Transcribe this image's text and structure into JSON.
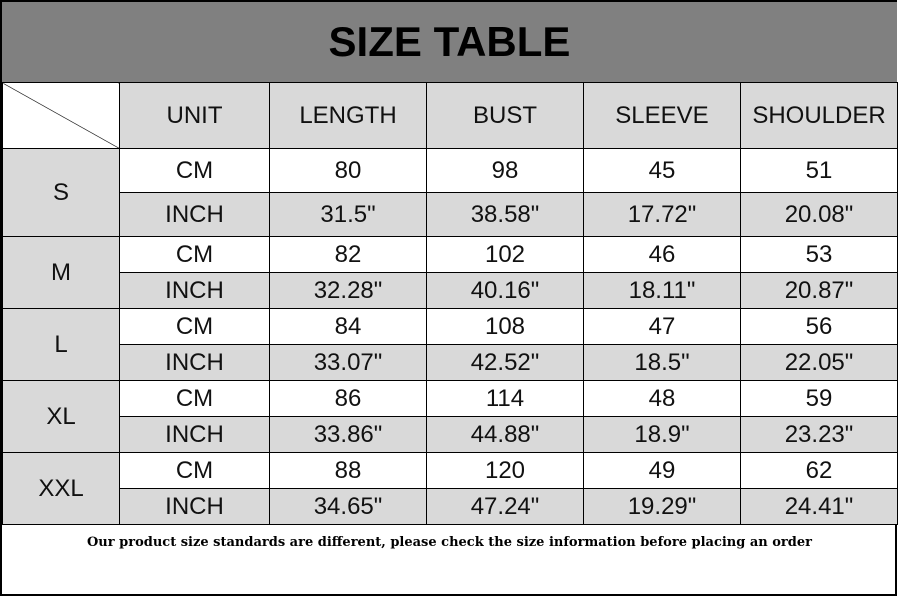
{
  "title": "SIZE TABLE",
  "columns": [
    "UNIT",
    "LENGTH",
    "BUST",
    "SLEEVE",
    "SHOULDER"
  ],
  "sizes": [
    {
      "size": "S",
      "rows": [
        [
          "CM",
          "80",
          "98",
          "45",
          "51"
        ],
        [
          "INCH",
          "31.5\"",
          "38.58\"",
          "17.72\"",
          "20.08\""
        ]
      ]
    },
    {
      "size": "M",
      "rows": [
        [
          "CM",
          "82",
          "102",
          "46",
          "53"
        ],
        [
          "INCH",
          "32.28\"",
          "40.16\"",
          "18.11\"",
          "20.87\""
        ]
      ]
    },
    {
      "size": "L",
      "rows": [
        [
          "CM",
          "84",
          "108",
          "47",
          "56"
        ],
        [
          "INCH",
          "33.07\"",
          "42.52\"",
          "18.5\"",
          "22.05\""
        ]
      ]
    },
    {
      "size": "XL",
      "rows": [
        [
          "CM",
          "86",
          "114",
          "48",
          "59"
        ],
        [
          "INCH",
          "33.86\"",
          "44.88\"",
          "18.9\"",
          "23.23\""
        ]
      ]
    },
    {
      "size": "XXL",
      "rows": [
        [
          "CM",
          "88",
          "120",
          "49",
          "62"
        ],
        [
          "INCH",
          "34.65\"",
          "47.24\"",
          "19.29\"",
          "24.41\""
        ]
      ]
    }
  ],
  "footer_note": "Our product size standards are different, please check the size information before placing an order",
  "colors": {
    "title_bg": "#808080",
    "gray_cell": "#d9d9d9",
    "white_cell": "#ffffff"
  }
}
